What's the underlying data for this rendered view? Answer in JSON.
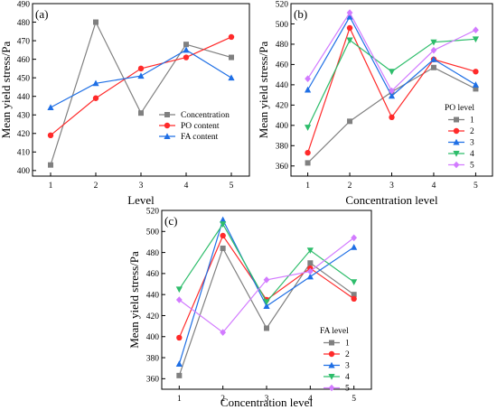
{
  "chart_data": [
    {
      "type": "line",
      "panel_label": "(a)",
      "xlabel": "Level",
      "ylabel": "Mean yield stress/Pa",
      "x": [
        1,
        2,
        3,
        4,
        5
      ],
      "xlim": [
        0.6,
        5.4
      ],
      "ylim": [
        397,
        490
      ],
      "yticks": [
        400,
        410,
        420,
        430,
        440,
        450,
        460,
        470,
        480,
        490
      ],
      "legend_title": "",
      "legend_position": "bottom-right",
      "series": [
        {
          "name": "Concentration",
          "values": [
            403,
            480,
            431,
            468,
            461
          ],
          "color": "#808080",
          "marker": "square"
        },
        {
          "name": "PO content",
          "values": [
            419,
            439,
            455,
            461,
            472
          ],
          "color": "#ff2a2a",
          "marker": "circle"
        },
        {
          "name": "FA content",
          "values": [
            434,
            447,
            451,
            465,
            450
          ],
          "color": "#1f6fe5",
          "marker": "triangle-up"
        }
      ]
    },
    {
      "type": "line",
      "panel_label": "(b)",
      "xlabel": "Concentration level",
      "ylabel": "Mean yield stress/Pa",
      "x": [
        1,
        2,
        3,
        4,
        5
      ],
      "xlim": [
        0.6,
        5.4
      ],
      "ylim": [
        350,
        520
      ],
      "yticks": [
        360,
        380,
        400,
        420,
        440,
        460,
        480,
        500,
        520
      ],
      "legend_title": "PO level",
      "legend_position": "right",
      "series": [
        {
          "name": "1",
          "values": [
            363,
            404,
            433,
            457,
            436
          ],
          "color": "#808080",
          "marker": "square"
        },
        {
          "name": "2",
          "values": [
            373,
            496,
            408,
            465,
            453
          ],
          "color": "#ff2a2a",
          "marker": "circle"
        },
        {
          "name": "3",
          "values": [
            435,
            507,
            429,
            465,
            440
          ],
          "color": "#1f6fe5",
          "marker": "triangle-up"
        },
        {
          "name": "4",
          "values": [
            398,
            484,
            453,
            482,
            485
          ],
          "color": "#2ebd6b",
          "marker": "triangle-down"
        },
        {
          "name": "5",
          "values": [
            446,
            511,
            434,
            474,
            494
          ],
          "color": "#d27bff",
          "marker": "diamond"
        }
      ]
    },
    {
      "type": "line",
      "panel_label": "(c)",
      "xlabel": "Concentration level",
      "ylabel": "Mean yield stress/Pa",
      "x": [
        1,
        2,
        3,
        4,
        5
      ],
      "xlim": [
        0.6,
        5.4
      ],
      "ylim": [
        350,
        520
      ],
      "yticks": [
        360,
        380,
        400,
        420,
        440,
        460,
        480,
        500,
        520
      ],
      "legend_title": "FA level",
      "legend_position": "right",
      "series": [
        {
          "name": "1",
          "values": [
            363,
            484,
            408,
            470,
            440
          ],
          "color": "#808080",
          "marker": "square"
        },
        {
          "name": "2",
          "values": [
            399,
            496,
            435,
            465,
            436
          ],
          "color": "#ff2a2a",
          "marker": "circle"
        },
        {
          "name": "3",
          "values": [
            374,
            511,
            429,
            457,
            485
          ],
          "color": "#1f6fe5",
          "marker": "triangle-up"
        },
        {
          "name": "4",
          "values": [
            445,
            507,
            433,
            482,
            452
          ],
          "color": "#2ebd6b",
          "marker": "triangle-down"
        },
        {
          "name": "5",
          "values": [
            435,
            404,
            454,
            462,
            494
          ],
          "color": "#d27bff",
          "marker": "diamond"
        }
      ]
    }
  ]
}
